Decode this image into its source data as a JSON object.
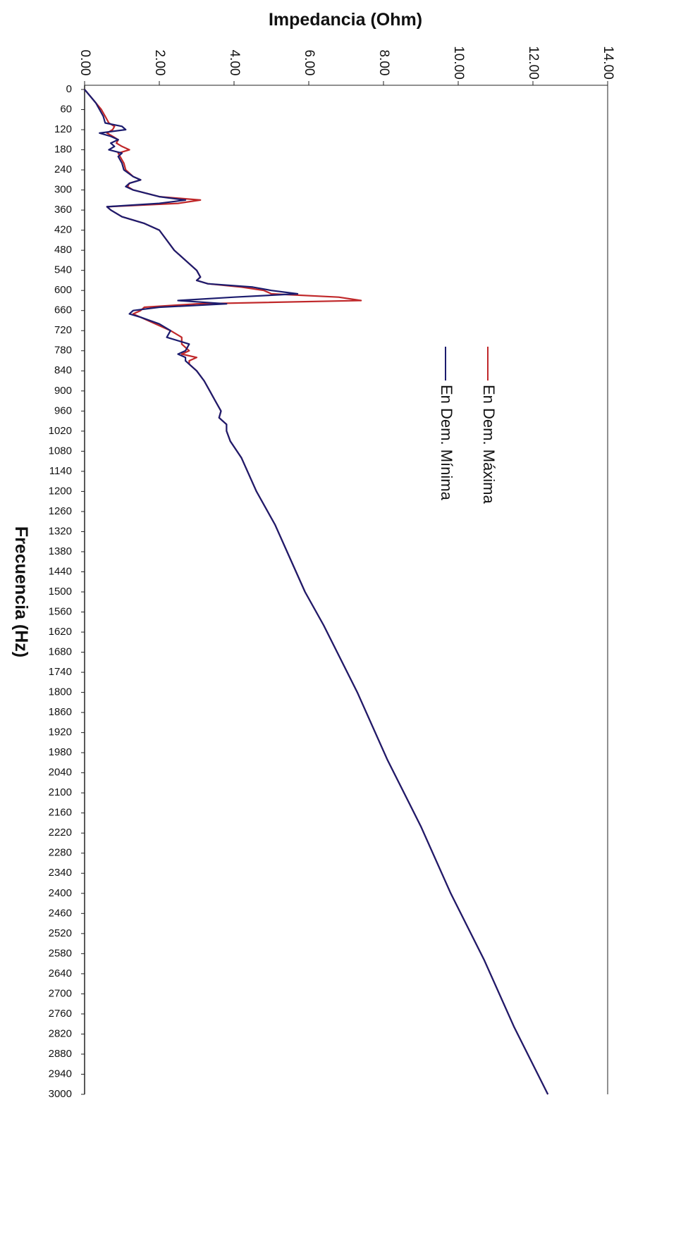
{
  "chart_data": {
    "type": "line",
    "title": "Impedancia (Ohm)",
    "x_label": "Frecuencia (Hz)",
    "x": [
      0,
      20,
      40,
      60,
      80,
      100,
      110,
      120,
      130,
      140,
      150,
      160,
      170,
      180,
      190,
      200,
      220,
      240,
      260,
      270,
      280,
      290,
      300,
      320,
      330,
      340,
      350,
      360,
      380,
      400,
      420,
      450,
      480,
      510,
      540,
      560,
      570,
      580,
      590,
      600,
      610,
      620,
      630,
      640,
      650,
      660,
      670,
      680,
      700,
      720,
      740,
      760,
      780,
      790,
      800,
      810,
      820,
      840,
      870,
      900,
      930,
      960,
      980,
      1000,
      1020,
      1050,
      1100,
      1200,
      1300,
      1400,
      1500,
      1600,
      1800,
      2000,
      2200,
      2400,
      2600,
      2800,
      3000
    ],
    "series": [
      {
        "name": "En Dem. Máxima",
        "color": "#c0282a",
        "values": [
          0,
          0.15,
          0.3,
          0.45,
          0.55,
          0.65,
          0.8,
          0.75,
          0.6,
          0.75,
          0.9,
          0.85,
          1.0,
          1.2,
          0.9,
          0.95,
          1.05,
          1.1,
          1.3,
          1.5,
          1.2,
          1.15,
          1.3,
          2.0,
          3.1,
          2.5,
          0.6,
          0.7,
          1.0,
          1.6,
          2.0,
          2.2,
          2.4,
          2.7,
          3.0,
          3.1,
          3.0,
          3.3,
          4.2,
          4.8,
          5.0,
          6.8,
          7.4,
          3.0,
          1.6,
          1.5,
          1.3,
          1.5,
          1.9,
          2.3,
          2.6,
          2.6,
          2.8,
          2.6,
          3.0,
          2.8,
          2.8,
          3.0,
          3.2,
          3.35,
          3.5,
          3.65,
          3.6,
          3.8,
          3.8,
          3.9,
          4.2,
          4.6,
          5.1,
          5.5,
          5.9,
          6.4,
          7.3,
          8.1,
          9.0,
          9.8,
          10.7,
          11.5,
          12.4
        ]
      },
      {
        "name": "En Dem. Mínima",
        "color": "#1c1c6e",
        "values": [
          0,
          0.15,
          0.3,
          0.4,
          0.5,
          0.55,
          1.0,
          1.1,
          0.4,
          0.7,
          0.9,
          0.7,
          0.8,
          0.65,
          1.0,
          0.9,
          1.0,
          1.05,
          1.3,
          1.5,
          1.2,
          1.1,
          1.3,
          2.0,
          2.7,
          2.0,
          0.6,
          0.7,
          1.0,
          1.6,
          2.0,
          2.2,
          2.4,
          2.7,
          3.0,
          3.1,
          3.0,
          3.3,
          4.5,
          5.0,
          5.7,
          4.0,
          2.5,
          3.8,
          2.0,
          1.3,
          1.2,
          1.5,
          2.0,
          2.3,
          2.2,
          2.8,
          2.7,
          2.5,
          2.7,
          2.7,
          2.8,
          3.0,
          3.2,
          3.35,
          3.5,
          3.65,
          3.6,
          3.8,
          3.8,
          3.9,
          4.2,
          4.6,
          5.1,
          5.5,
          5.9,
          6.4,
          7.3,
          8.1,
          9.0,
          9.8,
          10.7,
          11.5,
          12.4
        ]
      }
    ],
    "xlim": [
      0,
      3000
    ],
    "xticks": [
      0,
      60,
      120,
      180,
      240,
      300,
      360,
      420,
      480,
      540,
      600,
      660,
      720,
      780,
      840,
      900,
      960,
      1020,
      1080,
      1140,
      1200,
      1260,
      1320,
      1380,
      1440,
      1500,
      1560,
      1620,
      1680,
      1740,
      1800,
      1860,
      1920,
      1980,
      2040,
      2100,
      2160,
      2220,
      2280,
      2340,
      2400,
      2460,
      2520,
      2580,
      2640,
      2700,
      2760,
      2820,
      2880,
      2940,
      3000
    ],
    "ylim": [
      0,
      14
    ],
    "yticks": [
      {
        "value": 0,
        "label": "0.00"
      },
      {
        "value": 2,
        "label": "2.00"
      },
      {
        "value": 4,
        "label": "4.00"
      },
      {
        "value": 6,
        "label": "6.00"
      },
      {
        "value": 8,
        "label": "8.00"
      },
      {
        "value": 10,
        "label": "10.00"
      },
      {
        "value": 12,
        "label": "12.00"
      },
      {
        "value": 14,
        "label": "14.00"
      }
    ],
    "grid": false
  }
}
